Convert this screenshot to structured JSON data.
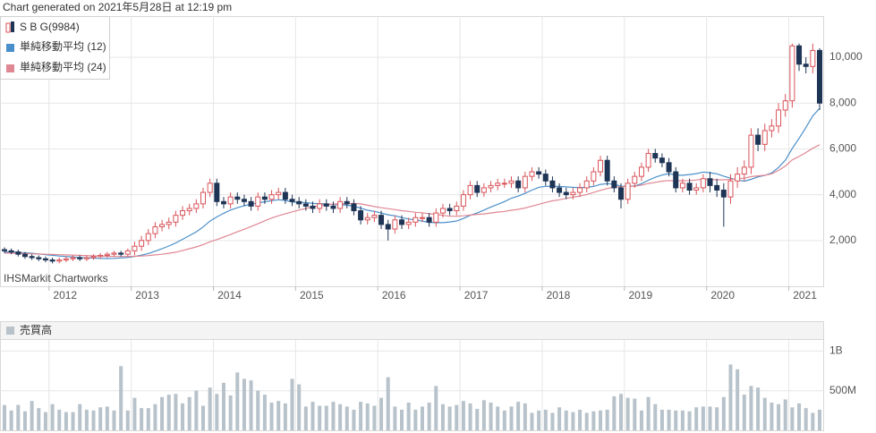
{
  "chart_data": [
    {
      "type": "candlestick",
      "title": "Chart generated on 2021年5月28日 at 12:19 pm",
      "annotation": "IHSMarkit Chartworks",
      "series": [
        {
          "name": "S B G(9984)",
          "up_color": "#d9535a",
          "down_color": "#1f3556",
          "open": [
            1600,
            1550,
            1500,
            1400,
            1300,
            1250,
            1200,
            1150,
            1100,
            1150,
            1200,
            1250,
            1200,
            1250,
            1300,
            1350,
            1400,
            1450,
            1400,
            1550,
            1750,
            2000,
            2300,
            2600,
            2700,
            2800,
            3100,
            3300,
            3400,
            3600,
            4100,
            4500,
            3700,
            3600,
            3900,
            3800,
            3700,
            3500,
            3900,
            3800,
            4000,
            4100,
            3800,
            3700,
            3600,
            3500,
            3400,
            3600,
            3500,
            3400,
            3700,
            3600,
            3300,
            2900,
            3000,
            3100,
            2700,
            2500,
            2900,
            2700,
            2800,
            3000,
            3000,
            2800,
            3200,
            3400,
            3300,
            3500,
            4000,
            4400,
            4100,
            4300,
            4400,
            4500,
            4500,
            4600,
            4300,
            4800,
            5000,
            4900,
            4600,
            4300,
            4100,
            4000,
            4100,
            4300,
            4600,
            5000,
            5500,
            4600,
            4300,
            3800,
            4500,
            4800,
            5200,
            5800,
            5600,
            5400,
            5000,
            4300,
            4500,
            4200,
            4300,
            4700,
            4400,
            4200,
            3900,
            4600,
            4900,
            5200,
            6600,
            6200,
            6800,
            7000,
            7700,
            8100,
            10500,
            9700,
            9600,
            10300
          ],
          "high": [
            1700,
            1650,
            1600,
            1500,
            1400,
            1350,
            1300,
            1250,
            1250,
            1300,
            1350,
            1350,
            1350,
            1400,
            1450,
            1500,
            1550,
            1550,
            1650,
            1950,
            2200,
            2500,
            2800,
            2900,
            3000,
            3300,
            3500,
            3600,
            3800,
            4300,
            4700,
            4700,
            3900,
            4100,
            4100,
            4000,
            3900,
            4100,
            4100,
            4200,
            4300,
            4300,
            4000,
            3900,
            3800,
            3700,
            3800,
            3800,
            3700,
            3900,
            3900,
            3800,
            3500,
            3200,
            3300,
            3300,
            2900,
            3100,
            3100,
            3000,
            3200,
            3200,
            3200,
            3400,
            3600,
            3600,
            3700,
            4200,
            4600,
            4600,
            4500,
            4600,
            4700,
            4700,
            4800,
            4800,
            5000,
            5200,
            5200,
            5100,
            4800,
            4500,
            4300,
            4300,
            4500,
            4800,
            5200,
            5700,
            5700,
            4800,
            4500,
            4700,
            5000,
            5400,
            6000,
            6000,
            5800,
            5600,
            5200,
            4700,
            4700,
            4500,
            4900,
            5000,
            4700,
            4500,
            4900,
            5200,
            5500,
            6900,
            6900,
            7100,
            7300,
            8000,
            8400,
            10600,
            10600,
            10000,
            10600,
            10400
          ],
          "low": [
            1450,
            1400,
            1300,
            1200,
            1150,
            1100,
            1050,
            1000,
            1000,
            1050,
            1100,
            1100,
            1100,
            1150,
            1200,
            1250,
            1300,
            1300,
            1300,
            1350,
            1550,
            1800,
            2100,
            2400,
            2500,
            2600,
            2900,
            3100,
            3200,
            3400,
            3900,
            3500,
            3400,
            3400,
            3600,
            3500,
            3300,
            3300,
            3600,
            3600,
            3800,
            3600,
            3500,
            3400,
            3300,
            3200,
            3200,
            3300,
            3200,
            3200,
            3400,
            3100,
            2700,
            2700,
            2800,
            2500,
            2000,
            2300,
            2500,
            2500,
            2600,
            2800,
            2600,
            2600,
            3000,
            3100,
            3100,
            3300,
            3800,
            3900,
            3900,
            4100,
            4200,
            4300,
            4300,
            4100,
            4100,
            4600,
            4700,
            4400,
            4100,
            3900,
            3800,
            3800,
            3900,
            4100,
            4400,
            4800,
            4400,
            4100,
            3400,
            3600,
            4300,
            4600,
            5000,
            5400,
            5200,
            4800,
            4100,
            4100,
            4000,
            4000,
            4100,
            4100,
            3900,
            2600,
            3600,
            4300,
            4600,
            4900,
            5900,
            5900,
            6500,
            6700,
            7400,
            7800,
            9400,
            9300,
            9300,
            7700
          ],
          "close": [
            1550,
            1500,
            1400,
            1300,
            1250,
            1200,
            1150,
            1100,
            1150,
            1200,
            1250,
            1200,
            1250,
            1300,
            1350,
            1400,
            1450,
            1400,
            1550,
            1750,
            2000,
            2300,
            2600,
            2700,
            2800,
            3100,
            3300,
            3400,
            3600,
            4100,
            4500,
            3700,
            3600,
            3900,
            3800,
            3700,
            3500,
            3900,
            3800,
            4000,
            4100,
            3800,
            3700,
            3600,
            3500,
            3400,
            3600,
            3500,
            3400,
            3700,
            3600,
            3300,
            2900,
            3000,
            3100,
            2700,
            2500,
            2900,
            2700,
            2800,
            3000,
            3000,
            2800,
            3200,
            3400,
            3300,
            3500,
            4000,
            4400,
            4100,
            4300,
            4400,
            4500,
            4500,
            4600,
            4300,
            4800,
            5000,
            4900,
            4600,
            4300,
            4100,
            4000,
            4100,
            4300,
            4600,
            5000,
            5500,
            4600,
            4300,
            3800,
            4500,
            4800,
            5200,
            5800,
            5600,
            5400,
            5000,
            4300,
            4500,
            4200,
            4300,
            4700,
            4400,
            4200,
            3900,
            4600,
            4900,
            5200,
            6600,
            6200,
            6800,
            7000,
            7700,
            8100,
            10500,
            9700,
            9600,
            10300,
            8000
          ]
        }
      ],
      "lines": [
        {
          "name": "単純移動平均 (12)",
          "color": "#4a8fc9",
          "values": [
            1500,
            1490,
            1480,
            1460,
            1440,
            1410,
            1380,
            1350,
            1320,
            1300,
            1280,
            1260,
            1250,
            1230,
            1220,
            1210,
            1220,
            1240,
            1260,
            1300,
            1360,
            1430,
            1530,
            1640,
            1760,
            1890,
            2050,
            2210,
            2380,
            2590,
            2850,
            3030,
            3190,
            3330,
            3430,
            3520,
            3580,
            3650,
            3690,
            3740,
            3780,
            3750,
            3680,
            3670,
            3660,
            3620,
            3610,
            3590,
            3570,
            3560,
            3540,
            3500,
            3410,
            3320,
            3270,
            3200,
            3120,
            3080,
            3000,
            2940,
            2900,
            2850,
            2790,
            2780,
            2780,
            2810,
            2850,
            2960,
            3100,
            3200,
            3330,
            3460,
            3580,
            3700,
            3850,
            3940,
            4060,
            4200,
            4320,
            4370,
            4360,
            4360,
            4340,
            4320,
            4310,
            4320,
            4360,
            4450,
            4480,
            4460,
            4370,
            4370,
            4380,
            4480,
            4630,
            4760,
            4860,
            4920,
            4860,
            4850,
            4880,
            4920,
            4990,
            4960,
            4910,
            4810,
            4720,
            4640,
            4590,
            4670,
            4780,
            4840,
            4950,
            5190,
            5510,
            6020,
            6460,
            6940,
            7440,
            7770
          ]
        },
        {
          "name": "単純移動平均 (24)",
          "color": "#df8793",
          "values": [
            1450,
            1450,
            1440,
            1430,
            1420,
            1410,
            1400,
            1390,
            1380,
            1370,
            1360,
            1350,
            1340,
            1330,
            1320,
            1310,
            1300,
            1300,
            1300,
            1310,
            1320,
            1340,
            1370,
            1400,
            1440,
            1490,
            1560,
            1640,
            1720,
            1820,
            1940,
            2040,
            2150,
            2260,
            2380,
            2490,
            2610,
            2730,
            2860,
            2980,
            3080,
            3170,
            3250,
            3330,
            3400,
            3470,
            3520,
            3560,
            3590,
            3600,
            3610,
            3620,
            3600,
            3540,
            3480,
            3430,
            3390,
            3350,
            3300,
            3270,
            3230,
            3210,
            3170,
            3140,
            3100,
            3060,
            3060,
            3080,
            3110,
            3140,
            3160,
            3200,
            3240,
            3270,
            3320,
            3360,
            3420,
            3500,
            3580,
            3660,
            3730,
            3780,
            3840,
            3890,
            3940,
            4010,
            4100,
            4190,
            4270,
            4330,
            4350,
            4370,
            4370,
            4420,
            4490,
            4540,
            4590,
            4620,
            4600,
            4610,
            4620,
            4640,
            4680,
            4670,
            4650,
            4650,
            4670,
            4700,
            4720,
            4790,
            4820,
            4850,
            4910,
            5060,
            5250,
            5520,
            5670,
            5840,
            6030,
            6180
          ]
        }
      ],
      "xticks": [
        {
          "value": 6.5,
          "label": "2012"
        },
        {
          "value": 18.5,
          "label": "2013"
        },
        {
          "value": 30.5,
          "label": "2014"
        },
        {
          "value": 42.5,
          "label": "2015"
        },
        {
          "value": 54.5,
          "label": "2016"
        },
        {
          "value": 66.5,
          "label": "2017"
        },
        {
          "value": 78.5,
          "label": "2018"
        },
        {
          "value": 90.5,
          "label": "2019"
        },
        {
          "value": 102.5,
          "label": "2020"
        },
        {
          "value": 114.5,
          "label": "2021"
        }
      ],
      "ylim": [
        0,
        11800
      ],
      "yticks": [
        {
          "value": 2000,
          "label": "2,000"
        },
        {
          "value": 4000,
          "label": "4,000"
        },
        {
          "value": 6000,
          "label": "6,000"
        },
        {
          "value": 8000,
          "label": "8,000"
        },
        {
          "value": 10000,
          "label": "10,000"
        }
      ],
      "grid": true
    },
    {
      "type": "bar",
      "series": [
        {
          "name": "売買高",
          "color": "#b7c2ca",
          "values": [
            320000000.0,
            250000000.0,
            320000000.0,
            240000000.0,
            370000000.0,
            280000000.0,
            230000000.0,
            330000000.0,
            260000000.0,
            230000000.0,
            230000000.0,
            330000000.0,
            260000000.0,
            250000000.0,
            290000000.0,
            300000000.0,
            250000000.0,
            810000000.0,
            250000000.0,
            410000000.0,
            280000000.0,
            280000000.0,
            330000000.0,
            420000000.0,
            450000000.0,
            460000000.0,
            340000000.0,
            420000000.0,
            500000000.0,
            310000000.0,
            540000000.0,
            460000000.0,
            600000000.0,
            440000000.0,
            730000000.0,
            650000000.0,
            630000000.0,
            500000000.0,
            450000000.0,
            350000000.0,
            370000000.0,
            340000000.0,
            650000000.0,
            580000000.0,
            300000000.0,
            360000000.0,
            310000000.0,
            310000000.0,
            360000000.0,
            330000000.0,
            300000000.0,
            260000000.0,
            360000000.0,
            340000000.0,
            310000000.0,
            410000000.0,
            670000000.0,
            300000000.0,
            260000000.0,
            350000000.0,
            260000000.0,
            300000000.0,
            350000000.0,
            560000000.0,
            330000000.0,
            300000000.0,
            320000000.0,
            370000000.0,
            340000000.0,
            270000000.0,
            380000000.0,
            350000000.0,
            300000000.0,
            250000000.0,
            300000000.0,
            360000000.0,
            340000000.0,
            220000000.0,
            250000000.0,
            260000000.0,
            220000000.0,
            290000000.0,
            250000000.0,
            230000000.0,
            260000000.0,
            220000000.0,
            240000000.0,
            250000000.0,
            260000000.0,
            430000000.0,
            460000000.0,
            410000000.0,
            400000000.0,
            250000000.0,
            420000000.0,
            330000000.0,
            260000000.0,
            260000000.0,
            250000000.0,
            250000000.0,
            240000000.0,
            290000000.0,
            300000000.0,
            300000000.0,
            290000000.0,
            420000000.0,
            830000000.0,
            770000000.0,
            450000000.0,
            560000000.0,
            540000000.0,
            410000000.0,
            350000000.0,
            330000000.0,
            390000000.0,
            290000000.0,
            340000000.0,
            280000000.0,
            220000000.0,
            260000000.0
          ]
        }
      ],
      "ylim": [
        0,
        1140000000.0
      ],
      "yticks": [
        {
          "value": 500000000.0,
          "label": "500M"
        },
        {
          "value": 1000000000.0,
          "label": "1B"
        }
      ],
      "grid": true
    }
  ]
}
